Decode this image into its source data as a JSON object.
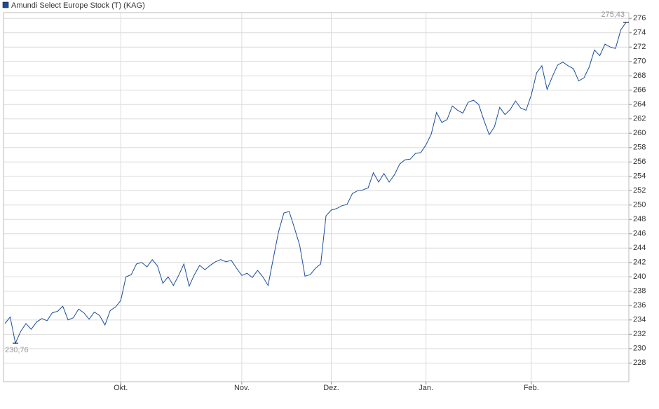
{
  "chart_data": {
    "type": "line",
    "categories": [
      null,
      null,
      null,
      null,
      null,
      null,
      null,
      null,
      null,
      null,
      null,
      null,
      null,
      null,
      null,
      null,
      null,
      null,
      null,
      null,
      null,
      null,
      "Okt.",
      null,
      null,
      null,
      null,
      null,
      null,
      null,
      null,
      null,
      null,
      null,
      null,
      null,
      null,
      null,
      null,
      null,
      null,
      null,
      null,
      null,
      null,
      "Nov.",
      null,
      null,
      null,
      null,
      null,
      null,
      null,
      null,
      null,
      null,
      null,
      null,
      null,
      null,
      null,
      null,
      "Dez.",
      null,
      null,
      null,
      null,
      null,
      null,
      null,
      null,
      null,
      null,
      null,
      null,
      null,
      null,
      null,
      null,
      null,
      "Jan.",
      null,
      null,
      null,
      null,
      null,
      null,
      null,
      null,
      null,
      null,
      null,
      null,
      null,
      null,
      null,
      null,
      null,
      null,
      null,
      "Feb.",
      null,
      null,
      null,
      null,
      null,
      null,
      null,
      null,
      null,
      null,
      null,
      null,
      null,
      null,
      null,
      null,
      null,
      null
    ],
    "series": [
      {
        "name": "Amundi Select Europe Stock (T) (KAG)",
        "color": "#1a4d9b",
        "values": [
          233.5,
          234.4,
          230.76,
          232.4,
          233.5,
          232.7,
          233.7,
          234.2,
          233.9,
          235,
          235.2,
          235.9,
          234,
          234.3,
          235.5,
          235,
          234.1,
          235.1,
          234.6,
          233.3,
          235.3,
          235.8,
          236.7,
          240,
          240.3,
          241.8,
          242,
          241.4,
          242.4,
          241.5,
          239.1,
          240,
          238.8,
          240.2,
          241.8,
          238.7,
          240.3,
          241.6,
          241,
          241.6,
          242.1,
          242.4,
          242.1,
          242.3,
          241.2,
          240.2,
          240.5,
          239.9,
          240.9,
          240,
          238.8,
          242.6,
          246.3,
          248.9,
          249.1,
          246.8,
          244.4,
          240.1,
          240.3,
          241.2,
          241.8,
          248.5,
          249.3,
          249.5,
          249.9,
          250.1,
          251.6,
          252,
          252.1,
          252.4,
          254.5,
          253.2,
          254.4,
          253.2,
          254.2,
          255.7,
          256.3,
          256.4,
          257.2,
          257.3,
          258.4,
          259.9,
          262.9,
          261.5,
          261.9,
          263.8,
          263.2,
          262.8,
          264.3,
          264.6,
          264,
          261.8,
          259.8,
          260.9,
          263.6,
          262.6,
          263.3,
          264.5,
          263.5,
          263.2,
          265.3,
          268.4,
          269.4,
          266.1,
          267.9,
          269.5,
          269.9,
          269.4,
          269,
          267.3,
          267.7,
          269.2,
          271.6,
          270.8,
          272.4,
          272,
          271.8,
          274.4,
          275.43
        ]
      }
    ],
    "annotations": [
      {
        "value": 275.43,
        "label": "275,43"
      },
      {
        "value": 230.76,
        "label": "230,76"
      }
    ],
    "ylim": [
      225.4,
      276.8
    ],
    "yticks": [
      228,
      230,
      232,
      234,
      236,
      238,
      240,
      242,
      244,
      246,
      248,
      250,
      252,
      254,
      256,
      258,
      260,
      262,
      264,
      266,
      268,
      270,
      272,
      274,
      276
    ],
    "grid": true,
    "legend": "top-left"
  }
}
